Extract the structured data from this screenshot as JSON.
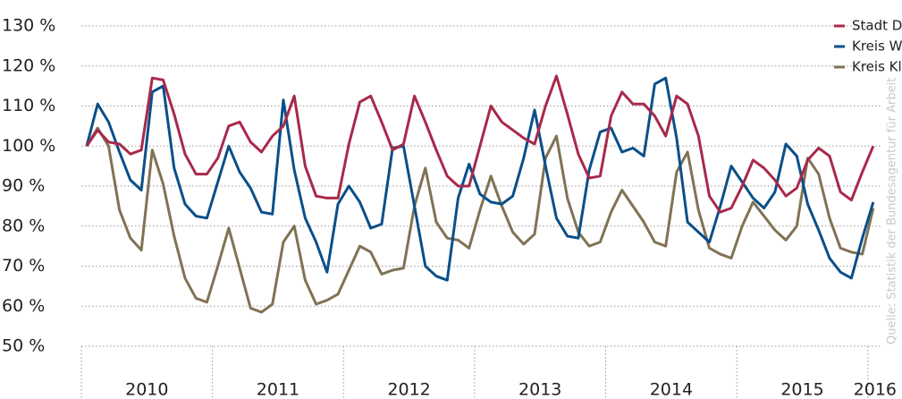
{
  "chart_data": {
    "type": "line",
    "source": "Quelle: Statistik der Bundesagentur für Arbeit",
    "year_labels": [
      "2010",
      "2011",
      "2012",
      "2013",
      "2014",
      "2015",
      "2016"
    ],
    "ylim": [
      50,
      130
    ],
    "yticks": [
      {
        "value": 50,
        "label": "50 %"
      },
      {
        "value": 60,
        "label": "60 %"
      },
      {
        "value": 70,
        "label": "70 %"
      },
      {
        "value": 80,
        "label": "80 %"
      },
      {
        "value": 90,
        "label": "90 %"
      },
      {
        "value": 100,
        "label": "100 %"
      },
      {
        "value": 110,
        "label": "110 %"
      },
      {
        "value": 120,
        "label": "120 %"
      },
      {
        "value": 130,
        "label": "130 %"
      }
    ],
    "grid": true,
    "legend": "upper right",
    "series": [
      {
        "name": "Stadt Duisburg",
        "color": "#a8294a",
        "values": [
          100,
          104,
          101,
          100.5,
          98,
          99,
          117,
          116.5,
          108,
          98,
          93,
          93,
          97,
          105,
          106,
          101,
          98.5,
          102.5,
          105,
          112.5,
          95,
          87.5,
          87,
          87,
          100.5,
          111,
          112.5,
          106,
          99,
          100.5,
          112.5,
          106,
          99,
          92.5,
          90,
          90,
          100,
          110,
          106,
          104,
          102,
          100.5,
          110,
          117.5,
          108,
          98,
          92,
          92.5,
          107.5,
          113.5,
          110.5,
          110.5,
          107.5,
          102.5,
          112.5,
          110.5,
          102.5,
          87.5,
          83.5,
          84.5,
          90,
          96.5,
          94.5,
          91.5,
          87.5,
          89.5,
          96.5,
          99.5,
          97.5,
          88.5,
          86.5,
          93.5,
          100
        ]
      },
      {
        "name": "Kreis Wesel",
        "color": "#0a4f8a",
        "values": [
          100,
          110.5,
          106,
          98.5,
          91.5,
          89,
          113.5,
          115,
          94.5,
          85.5,
          82.5,
          82,
          91,
          100,
          93.5,
          89.5,
          83.5,
          83,
          111.5,
          94,
          82,
          76,
          68.5,
          85.5,
          90,
          86,
          79.5,
          80.5,
          99.5,
          100,
          85,
          70,
          67.5,
          66.5,
          87,
          95.5,
          88,
          86,
          85.5,
          87.5,
          97,
          109,
          95,
          82,
          77.5,
          77,
          94,
          103.5,
          104.5,
          98.5,
          99.5,
          97.5,
          115.5,
          117,
          102,
          81,
          78.5,
          76,
          85,
          95,
          91,
          87,
          84.5,
          88.5,
          100.5,
          97.5,
          85.5,
          79,
          72,
          68.5,
          67,
          77,
          86
        ]
      },
      {
        "name": "Kreis Kleve",
        "color": "#807254",
        "values": [
          100,
          104.5,
          100,
          84,
          77,
          74,
          99,
          90.5,
          77.5,
          67,
          62,
          61,
          70,
          79.5,
          69.5,
          59.5,
          58.5,
          60.5,
          76,
          80,
          66.5,
          60.5,
          61.5,
          63,
          69,
          75,
          73.5,
          68,
          69,
          69.5,
          85,
          94.5,
          81,
          77,
          76.5,
          74.5,
          84,
          92.5,
          85,
          78.5,
          75.5,
          78,
          97,
          102.5,
          87,
          78.5,
          75,
          76,
          83.5,
          89,
          85,
          81,
          76,
          75,
          93.5,
          98.5,
          84,
          74.5,
          73,
          72,
          80,
          86,
          82.5,
          79,
          76.5,
          80,
          97,
          93,
          82,
          74.5,
          73.5,
          73,
          84.5
        ]
      }
    ]
  }
}
